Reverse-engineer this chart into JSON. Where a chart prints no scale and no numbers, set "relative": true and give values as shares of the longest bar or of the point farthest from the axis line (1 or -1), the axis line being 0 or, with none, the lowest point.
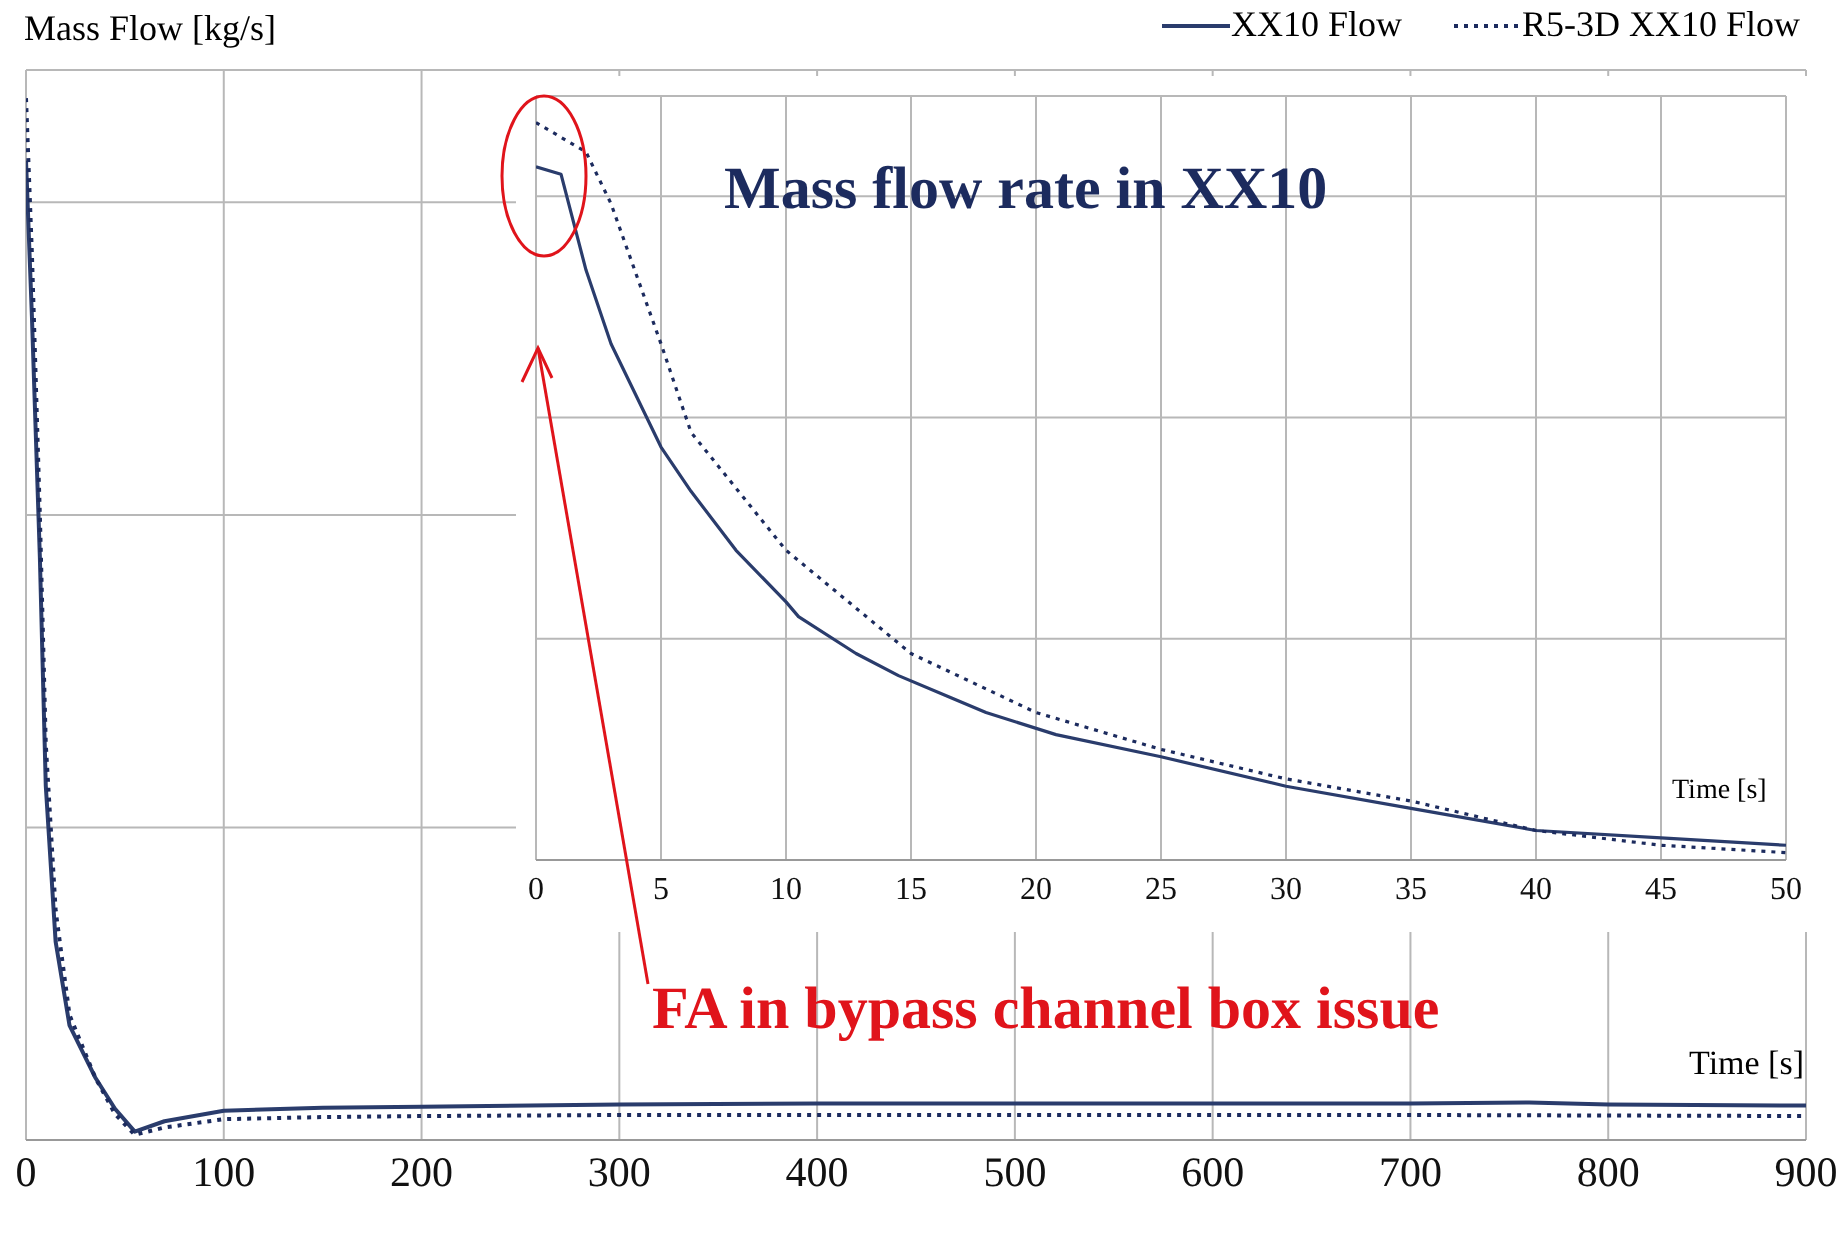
{
  "chart_data": [
    {
      "type": "line",
      "ylabel": "Mass Flow [kg/s]",
      "xlabel": "Time [s]",
      "relative": true,
      "xlim": [
        0,
        900
      ],
      "xticks": [
        0,
        100,
        200,
        300,
        400,
        500,
        600,
        700,
        800,
        900
      ],
      "grid": true,
      "legend": "top right",
      "series": [
        {
          "name": "XX10 Flow",
          "color": "#2a3c6c",
          "line_style": "solid",
          "x": [
            0,
            3,
            7,
            10,
            15,
            22,
            35,
            45,
            55,
            70,
            100,
            150,
            200,
            300,
            400,
            500,
            600,
            700,
            760,
            800,
            900
          ],
          "values": [
            0.94,
            0.79,
            0.56,
            0.34,
            0.19,
            0.11,
            0.06,
            0.03,
            0.008,
            0.018,
            0.028,
            0.031,
            0.032,
            0.034,
            0.035,
            0.035,
            0.035,
            0.035,
            0.036,
            0.034,
            0.033
          ]
        },
        {
          "name": "R5-3D  XX10 Flow",
          "color": "#1c2b5e",
          "line_style": "dotted",
          "x": [
            0,
            3,
            7,
            10,
            15,
            22,
            35,
            45,
            55,
            70,
            100,
            150,
            200,
            300,
            500,
            700,
            900
          ],
          "values": [
            1.0,
            0.85,
            0.6,
            0.38,
            0.22,
            0.12,
            0.06,
            0.025,
            0.005,
            0.012,
            0.02,
            0.022,
            0.023,
            0.024,
            0.024,
            0.024,
            0.023
          ]
        }
      ]
    },
    {
      "type": "line",
      "title": "Mass flow rate in XX10",
      "xlabel": "Time [s]",
      "relative": true,
      "xlim": [
        0,
        50
      ],
      "xticks": [
        0,
        5,
        10,
        15,
        20,
        25,
        30,
        35,
        40,
        45,
        50
      ],
      "grid": true,
      "annotations": [
        "FA in bypass channel box issue"
      ],
      "series": [
        {
          "color": "#2a3c6c",
          "line_style": "solid",
          "x": [
            0,
            1,
            2,
            3,
            5,
            6.2,
            8,
            10,
            10.5,
            12.8,
            14.5,
            16.6,
            18,
            20.8,
            25,
            30,
            35,
            40,
            45,
            50
          ],
          "values": [
            0.94,
            0.93,
            0.8,
            0.7,
            0.56,
            0.5,
            0.42,
            0.35,
            0.33,
            0.28,
            0.25,
            0.22,
            0.2,
            0.17,
            0.14,
            0.1,
            0.07,
            0.04,
            0.03,
            0.02
          ]
        },
        {
          "color": "#1c2b5e",
          "line_style": "dotted",
          "x": [
            0,
            2,
            3,
            5,
            6.2,
            10,
            15,
            20,
            25,
            30,
            35,
            40,
            45,
            50
          ],
          "values": [
            1.0,
            0.96,
            0.89,
            0.7,
            0.58,
            0.42,
            0.28,
            0.2,
            0.15,
            0.11,
            0.08,
            0.04,
            0.02,
            0.01
          ]
        }
      ]
    }
  ]
}
